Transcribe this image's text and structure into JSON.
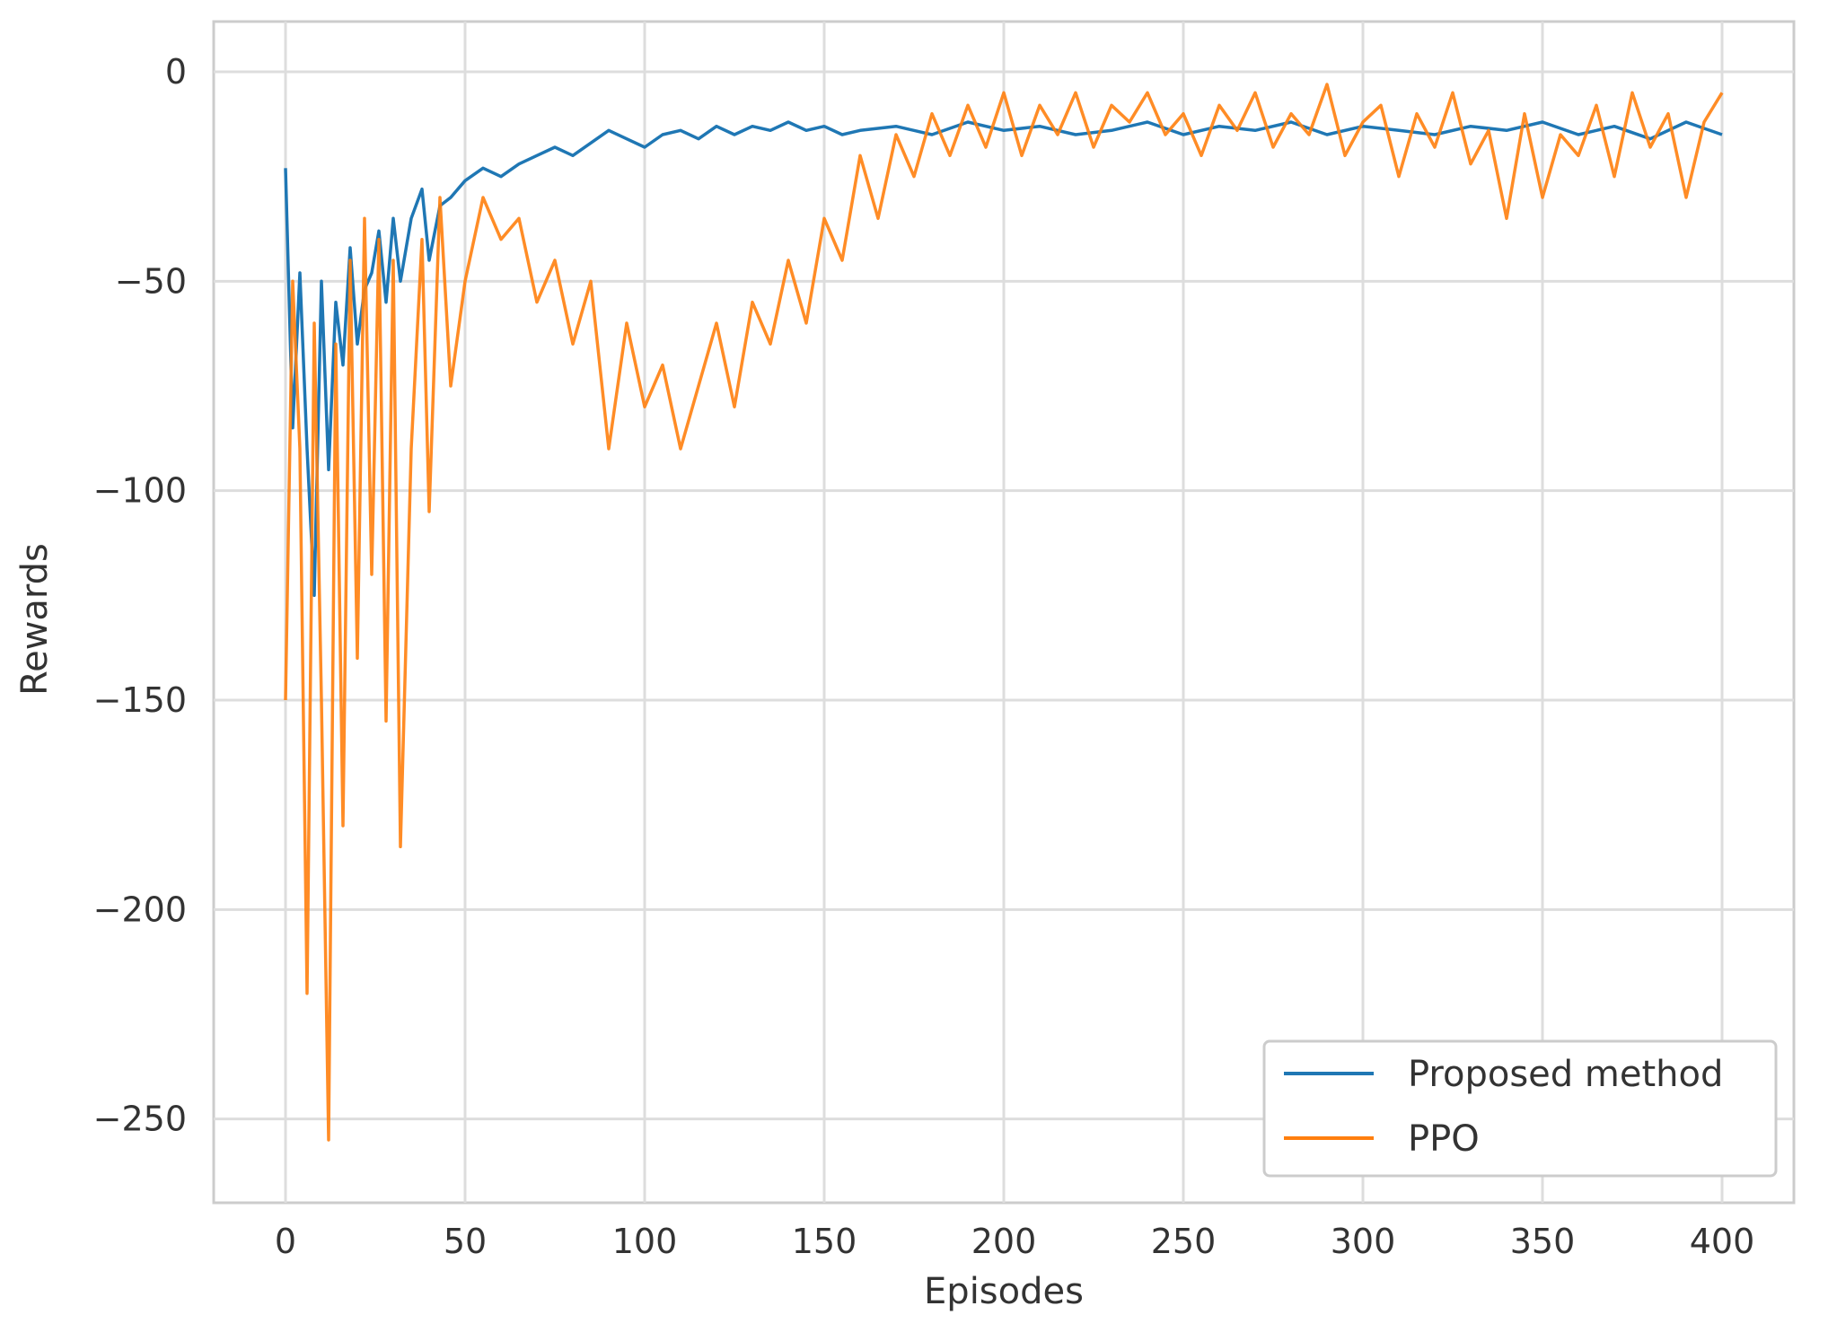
{
  "chart_data": {
    "type": "line",
    "xlabel": "Episodes",
    "ylabel": "Rewards",
    "xlim": [
      -20,
      420
    ],
    "ylim": [
      -270,
      12
    ],
    "x_ticks": [
      0,
      50,
      100,
      150,
      200,
      250,
      300,
      350,
      400
    ],
    "y_ticks": [
      0,
      -50,
      -100,
      -150,
      -200,
      -250
    ],
    "x_tick_labels": [
      "0",
      "50",
      "100",
      "150",
      "200",
      "250",
      "300",
      "350",
      "400"
    ],
    "y_tick_labels": [
      "0",
      "−50",
      "−100",
      "−150",
      "−200",
      "−250"
    ],
    "grid": true,
    "legend_position": "bottom-right",
    "series": [
      {
        "name": "Proposed method",
        "color": "#1f77b4",
        "x": [
          0,
          2,
          4,
          6,
          8,
          10,
          12,
          14,
          16,
          18,
          20,
          22,
          24,
          26,
          28,
          30,
          32,
          35,
          38,
          40,
          43,
          46,
          50,
          55,
          60,
          65,
          70,
          75,
          80,
          85,
          90,
          95,
          100,
          105,
          110,
          115,
          120,
          125,
          130,
          135,
          140,
          145,
          150,
          155,
          160,
          170,
          180,
          190,
          200,
          210,
          220,
          230,
          240,
          250,
          260,
          270,
          280,
          290,
          300,
          310,
          320,
          330,
          340,
          350,
          360,
          370,
          380,
          390,
          400
        ],
        "y": [
          -23,
          -85,
          -48,
          -90,
          -125,
          -50,
          -95,
          -55,
          -70,
          -42,
          -65,
          -52,
          -48,
          -38,
          -55,
          -35,
          -50,
          -35,
          -28,
          -45,
          -32,
          -30,
          -26,
          -23,
          -25,
          -22,
          -20,
          -18,
          -20,
          -17,
          -14,
          -16,
          -18,
          -15,
          -14,
          -16,
          -13,
          -15,
          -13,
          -14,
          -12,
          -14,
          -13,
          -15,
          -14,
          -13,
          -15,
          -12,
          -14,
          -13,
          -15,
          -14,
          -12,
          -15,
          -13,
          -14,
          -12,
          -15,
          -13,
          -14,
          -15,
          -13,
          -14,
          -12,
          -15,
          -13,
          -16,
          -12,
          -15
        ]
      },
      {
        "name": "PPO",
        "color": "#ff7f0e",
        "x": [
          0,
          2,
          4,
          6,
          8,
          10,
          12,
          14,
          16,
          18,
          20,
          22,
          24,
          26,
          28,
          30,
          32,
          35,
          38,
          40,
          43,
          46,
          50,
          55,
          60,
          65,
          70,
          75,
          80,
          85,
          90,
          95,
          100,
          105,
          110,
          115,
          120,
          125,
          130,
          135,
          140,
          145,
          150,
          155,
          160,
          165,
          170,
          175,
          180,
          185,
          190,
          195,
          200,
          205,
          210,
          215,
          220,
          225,
          230,
          235,
          240,
          245,
          250,
          255,
          260,
          265,
          270,
          275,
          280,
          285,
          290,
          295,
          300,
          305,
          310,
          315,
          320,
          325,
          330,
          335,
          340,
          345,
          350,
          355,
          360,
          365,
          370,
          375,
          380,
          385,
          390,
          395,
          400
        ],
        "y": [
          -150,
          -50,
          -90,
          -220,
          -60,
          -150,
          -255,
          -65,
          -180,
          -45,
          -140,
          -35,
          -120,
          -40,
          -155,
          -45,
          -185,
          -90,
          -40,
          -105,
          -30,
          -75,
          -50,
          -30,
          -40,
          -35,
          -55,
          -45,
          -65,
          -50,
          -90,
          -60,
          -80,
          -70,
          -90,
          -75,
          -60,
          -80,
          -55,
          -65,
          -45,
          -60,
          -35,
          -45,
          -20,
          -35,
          -15,
          -25,
          -10,
          -20,
          -8,
          -18,
          -5,
          -20,
          -8,
          -15,
          -5,
          -18,
          -8,
          -12,
          -5,
          -15,
          -10,
          -20,
          -8,
          -14,
          -5,
          -18,
          -10,
          -15,
          -3,
          -20,
          -12,
          -8,
          -25,
          -10,
          -18,
          -5,
          -22,
          -14,
          -35,
          -10,
          -30,
          -15,
          -20,
          -8,
          -25,
          -5,
          -18,
          -10,
          -30,
          -12,
          -5
        ]
      }
    ]
  }
}
